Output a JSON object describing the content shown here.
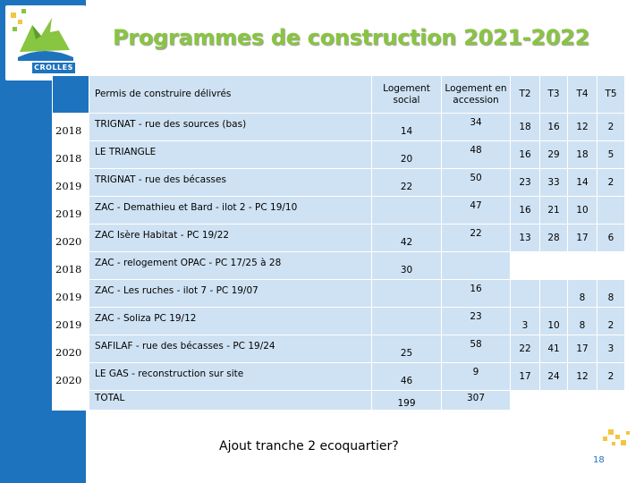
{
  "brand": {
    "logo_text": "CROLLES"
  },
  "title": "Programmes de construction 2021-2022",
  "table": {
    "headers": {
      "programme": "Permis de construire délivrés",
      "social": "Logement social",
      "accession": "Logement en accession",
      "t2": "T2",
      "t3": "T3",
      "t4": "T4",
      "t5": "T5"
    },
    "rows": [
      {
        "year": "2018",
        "programme": "TRIGNAT - rue des sources (bas)",
        "social": "14",
        "accession": "34",
        "t2": "18",
        "t3": "16",
        "t4": "12",
        "t5": "2"
      },
      {
        "year": "2018",
        "programme": "LE TRIANGLE",
        "social": "20",
        "accession": "48",
        "t2": "16",
        "t3": "29",
        "t4": "18",
        "t5": "5"
      },
      {
        "year": "2019",
        "programme": "TRIGNAT - rue des bécasses",
        "social": "22",
        "accession": "50",
        "t2": "23",
        "t3": "33",
        "t4": "14",
        "t5": "2"
      },
      {
        "year": "2019",
        "programme": "ZAC - Demathieu et Bard - ilot 2 - PC 19/10",
        "social": "",
        "accession": "47",
        "t2": "16",
        "t3": "21",
        "t4": "10",
        "t5": ""
      },
      {
        "year": "2020",
        "programme": "ZAC Isère Habitat - PC 19/22",
        "social": "42",
        "accession": "22",
        "t2": "13",
        "t3": "28",
        "t4": "17",
        "t5": "6"
      },
      {
        "year": "2018",
        "programme": "ZAC - relogement OPAC - PC 17/25 à 28",
        "social": "30",
        "accession": "",
        "t2": "",
        "t3": "",
        "t4": "",
        "t5": ""
      },
      {
        "year": "2019",
        "programme": "ZAC - Les ruches - ilot 7 - PC 19/07",
        "social": "",
        "accession": "16",
        "t2": "",
        "t3": "",
        "t4": "8",
        "t5": "8"
      },
      {
        "year": "2019",
        "programme": "ZAC - Soliza PC 19/12",
        "social": "",
        "accession": "23",
        "t2": "3",
        "t3": "10",
        "t4": "8",
        "t5": "2"
      },
      {
        "year": "2020",
        "programme": "SAFILAF - rue des bécasses - PC 19/24",
        "social": "25",
        "accession": "58",
        "t2": "22",
        "t3": "41",
        "t4": "17",
        "t5": "3"
      },
      {
        "year": "2020",
        "programme": "LE GAS - reconstruction sur site",
        "social": "46",
        "accession": "9",
        "t2": "17",
        "t3": "24",
        "t4": "12",
        "t5": "2"
      }
    ],
    "total": {
      "label": "TOTAL",
      "social": "199",
      "accession": "307"
    }
  },
  "note": "Ajout tranche 2 ecoquartier?",
  "page_number": "18",
  "colors": {
    "accent_blue": "#1e73be",
    "title_green": "#88c540",
    "cell_bg": "#cfe2f3"
  }
}
